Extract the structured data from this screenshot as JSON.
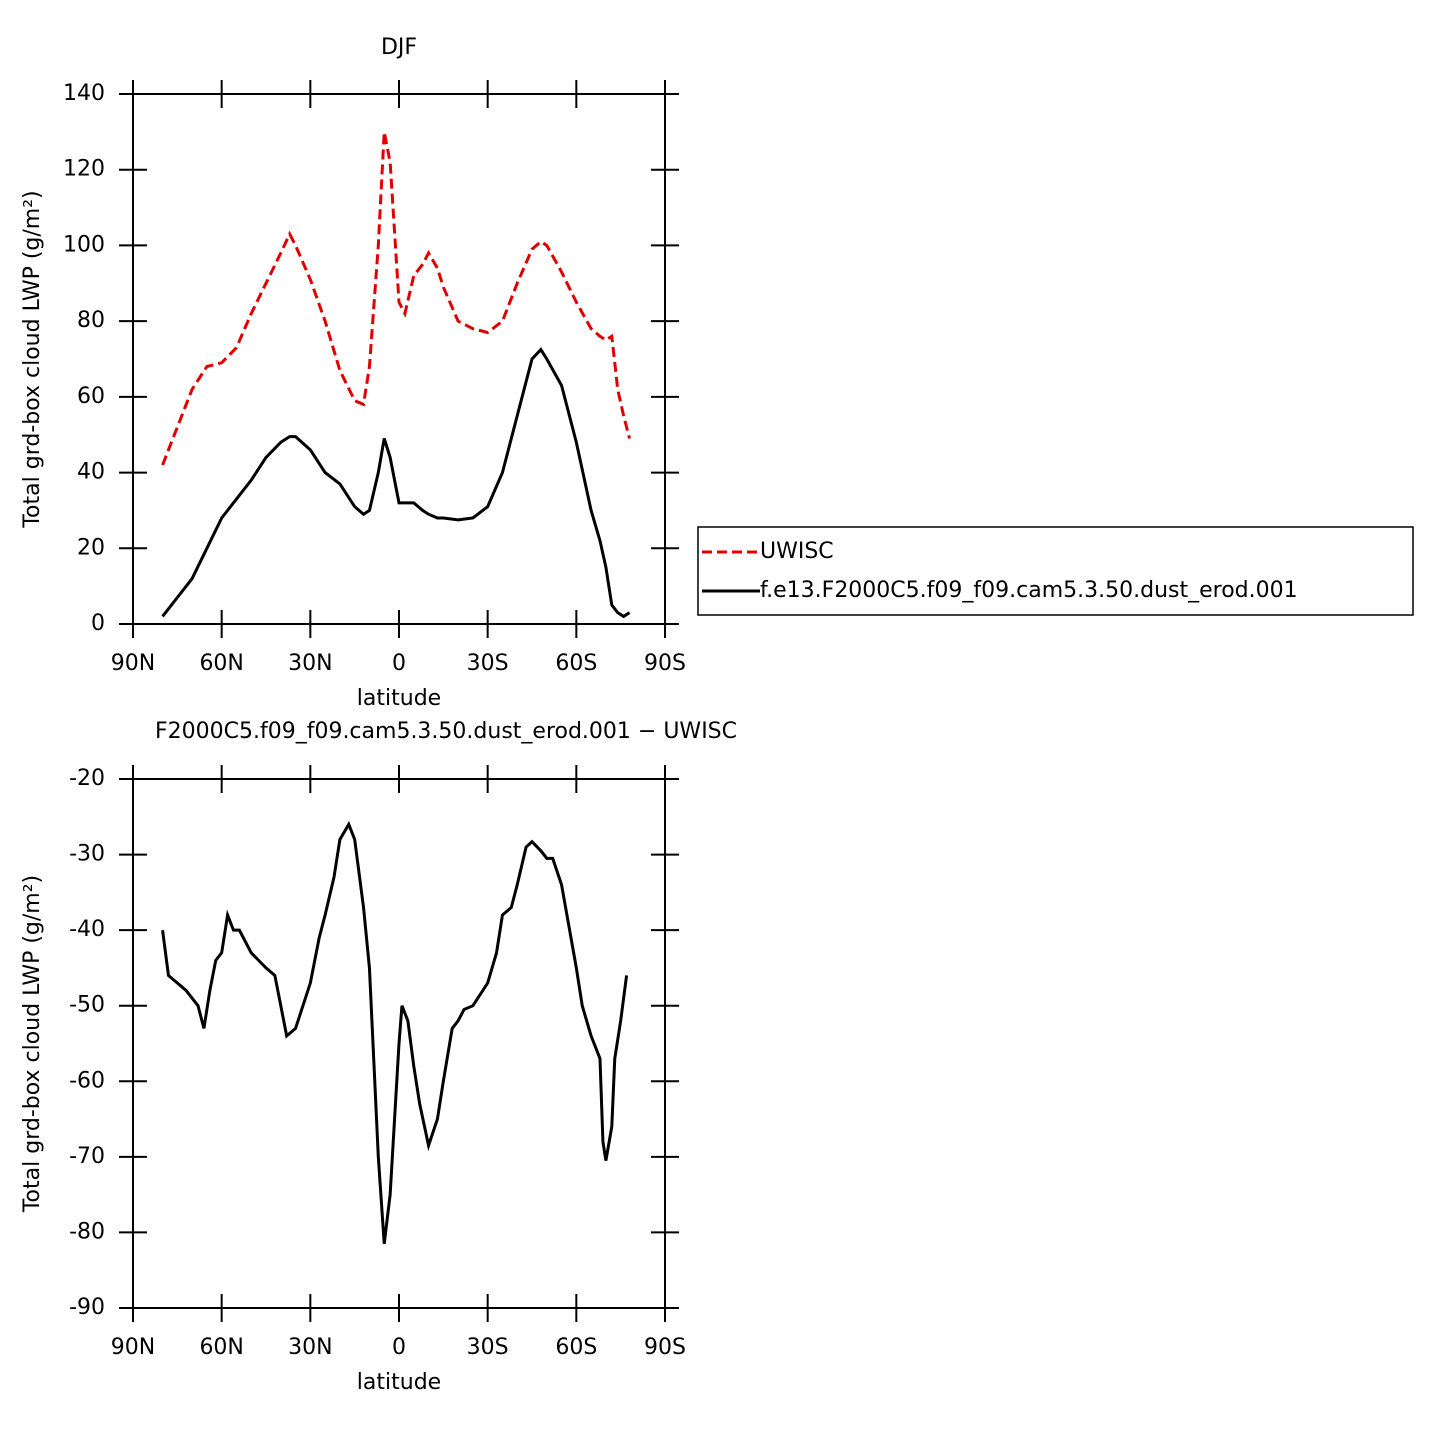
{
  "chart_data": [
    {
      "type": "line",
      "title": "DJF",
      "xlabel": "latitude",
      "ylabel": "Total grd-box cloud LWP (g/m²)",
      "xlim": [
        90,
        -90
      ],
      "xticks": [
        {
          "value": 90,
          "label": "90N"
        },
        {
          "value": 60,
          "label": "60N"
        },
        {
          "value": 30,
          "label": "30N"
        },
        0,
        {
          "value": -30,
          "label": "30S"
        },
        {
          "value": -60,
          "label": "60S"
        },
        {
          "value": -90,
          "label": "90S"
        }
      ],
      "ylim": [
        0,
        140
      ],
      "yticks": [
        0,
        20,
        40,
        60,
        80,
        100,
        120,
        140
      ],
      "legend": "right",
      "x": [
        80,
        75,
        70,
        65,
        60,
        55,
        50,
        45,
        40,
        37,
        35,
        30,
        25,
        20,
        15,
        12,
        10,
        7,
        5,
        3,
        0,
        -2,
        -5,
        -8,
        -10,
        -13,
        -15,
        -20,
        -25,
        -30,
        -35,
        -40,
        -45,
        -48,
        -50,
        -55,
        -60,
        -65,
        -68,
        -70,
        -72,
        -74,
        -76,
        -78
      ],
      "series": [
        {
          "name": "UWISC",
          "color": "#e00000",
          "style": "dashed",
          "values": [
            42,
            52,
            62,
            68,
            69,
            73,
            82,
            90,
            98,
            103,
            100,
            91,
            80,
            67,
            59,
            58,
            68,
            100,
            130,
            122,
            85,
            82,
            92,
            95,
            98,
            94,
            89,
            80,
            78,
            77,
            80,
            90,
            99,
            101,
            100,
            93,
            85,
            78,
            76,
            75,
            76,
            62,
            55,
            49
          ]
        },
        {
          "name": "f.e13.F2000C5.f09_f09.cam5.3.50.dust_erod.001",
          "color": "#000000",
          "style": "solid",
          "values": [
            2,
            7,
            12,
            20,
            28,
            33,
            38,
            44,
            48,
            49.5,
            49.5,
            46,
            40,
            37,
            31,
            29,
            30,
            40,
            49,
            44,
            32,
            32,
            32,
            30,
            29,
            28,
            28,
            27.5,
            28,
            31,
            40,
            55,
            70,
            72.5,
            70,
            63,
            48,
            30,
            22,
            15,
            5,
            3,
            2,
            3
          ]
        }
      ]
    },
    {
      "type": "line",
      "title": "F2000C5.f09_f09.cam5.3.50.dust_erod.001 − UWISC",
      "xlabel": "latitude",
      "ylabel": "Total grd-box cloud LWP (g/m²)",
      "xlim": [
        90,
        -90
      ],
      "xticks": [
        {
          "value": 90,
          "label": "90N"
        },
        {
          "value": 60,
          "label": "60N"
        },
        {
          "value": 30,
          "label": "30N"
        },
        0,
        {
          "value": -30,
          "label": "30S"
        },
        {
          "value": -60,
          "label": "60S"
        },
        {
          "value": -90,
          "label": "90S"
        }
      ],
      "ylim": [
        -90,
        -20
      ],
      "yticks": [
        -90,
        -80,
        -70,
        -60,
        -50,
        -40,
        -30,
        -20
      ],
      "x": [
        80,
        78,
        75,
        72,
        70,
        68,
        66,
        64,
        62,
        60,
        58,
        56,
        54,
        50,
        45,
        42,
        40,
        38,
        35,
        30,
        27,
        25,
        22,
        20,
        17,
        15,
        12,
        10,
        7,
        5,
        3,
        0,
        -1,
        -3,
        -5,
        -7,
        -10,
        -13,
        -15,
        -18,
        -20,
        -22,
        -25,
        -30,
        -33,
        -35,
        -38,
        -40,
        -43,
        -45,
        -48,
        -50,
        -52,
        -55,
        -60,
        -62,
        -65,
        -68,
        -69,
        -70,
        -72,
        -73,
        -75,
        -77
      ],
      "series": [
        {
          "color": "#000000",
          "style": "solid",
          "values": [
            -40,
            -46,
            -47,
            -48,
            -49,
            -50,
            -53,
            -48,
            -44,
            -43,
            -38,
            -40,
            -40,
            -43,
            -45,
            -46,
            -50,
            -54,
            -53,
            -47,
            -41,
            -38,
            -33,
            -28,
            -26,
            -28,
            -37,
            -45,
            -70,
            -81.5,
            -75,
            -55,
            -50,
            -52,
            -58,
            -63,
            -68.5,
            -65,
            -60,
            -53,
            -52,
            -50.5,
            -50,
            -47,
            -43,
            -38,
            -37,
            -34,
            -29,
            -28.3,
            -29.5,
            -30.5,
            -30.5,
            -34,
            -45,
            -50,
            -54,
            -57,
            -68,
            -70.5,
            -66,
            -57,
            -52,
            -46
          ]
        }
      ]
    }
  ]
}
